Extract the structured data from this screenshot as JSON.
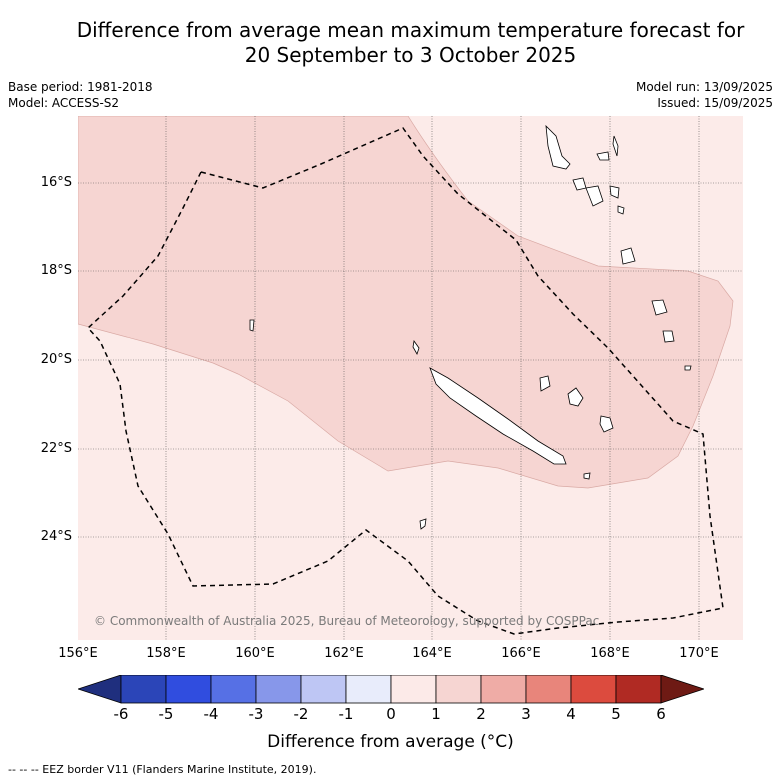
{
  "header": {
    "title_line1": "Difference from average mean maximum temperature forecast for",
    "title_line2": "20 September to 3 October 2025",
    "base_period": "Base period: 1981-2018",
    "model": "Model: ACCESS-S2",
    "model_run": "Model run: 13/09/2025",
    "issued": "Issued: 15/09/2025"
  },
  "map": {
    "lat_labels": [
      "16°S",
      "18°S",
      "20°S",
      "22°S",
      "24°S"
    ],
    "lon_labels": [
      "156°E",
      "158°E",
      "160°E",
      "162°E",
      "164°E",
      "166°E",
      "168°E",
      "170°E"
    ],
    "copyright": "© Commonwealth of Australia 2025, Bureau of Meteorology, supported by COSPPac",
    "eez_border_style": "dashed",
    "colors": {
      "anomaly_0_1": "#fcebe9",
      "anomaly_1_2": "#f6d6d3"
    }
  },
  "colorbar": {
    "ticks": [
      "-6",
      "-5",
      "-4",
      "-3",
      "-2",
      "-1",
      "0",
      "1",
      "2",
      "3",
      "4",
      "5",
      "6"
    ],
    "colors": [
      "#1f2f7e",
      "#2b45b8",
      "#304ddf",
      "#5670e5",
      "#8797ea",
      "#bec6f4",
      "#e8ecfb",
      "#fceae8",
      "#f6d5d2",
      "#efaca6",
      "#e8857b",
      "#dc4b3e",
      "#b02a23",
      "#6e1a14"
    ],
    "label": "Difference from average (°C)"
  },
  "footnote": "-- -- -- EEZ border V11 (Flanders Marine Institute, 2019)."
}
